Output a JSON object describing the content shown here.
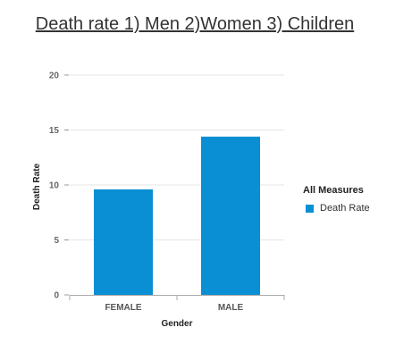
{
  "chart_data": {
    "type": "bar",
    "title": "Death rate 1) Men 2)Women 3) Children",
    "xlabel": "Gender",
    "ylabel": "Death Rate",
    "categories": [
      "FEMALE",
      "MALE"
    ],
    "series": [
      {
        "name": "Death Rate",
        "values": [
          9.6,
          14.4
        ]
      }
    ],
    "ylim": [
      0,
      20
    ],
    "yticks": [
      "0",
      "5",
      "10",
      "15",
      "20"
    ],
    "grid": true,
    "legend": {
      "title": "All Measures",
      "placement": "right"
    },
    "bar_color": "#0a8fd4"
  }
}
